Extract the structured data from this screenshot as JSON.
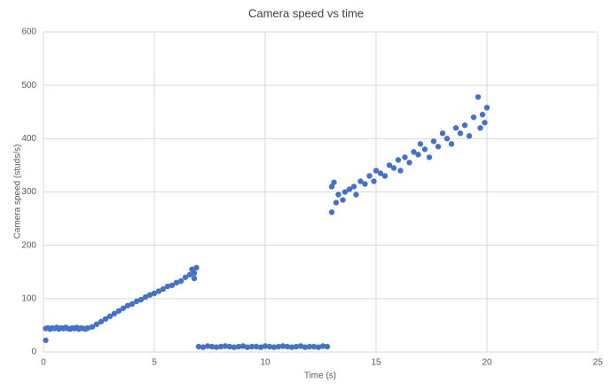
{
  "chart_data": {
    "type": "scatter",
    "title": "Camera speed vs time",
    "x_label": "Time (s)",
    "y_label": "Camera speed (studs/s)",
    "xlim": [
      0,
      25
    ],
    "xticks": [
      0,
      5,
      10,
      15,
      20,
      25
    ],
    "ylim": [
      0,
      600
    ],
    "yticks": [
      0,
      100,
      200,
      300,
      400,
      500,
      600
    ],
    "grid": true,
    "series": [
      {
        "color": "#4472c4",
        "x": [
          0.1,
          0.1,
          0.2,
          0.3,
          0.4,
          0.5,
          0.6,
          0.7,
          0.8,
          0.9,
          1.0,
          1.1,
          1.2,
          1.3,
          1.4,
          1.5,
          1.6,
          1.7,
          1.8,
          1.9,
          2.0,
          2.2,
          2.4,
          2.6,
          2.8,
          3.0,
          3.2,
          3.4,
          3.6,
          3.8,
          4.0,
          4.2,
          4.4,
          4.6,
          4.8,
          5.0,
          5.2,
          5.4,
          5.6,
          5.8,
          6.0,
          6.2,
          6.4,
          6.6,
          6.7,
          6.8,
          6.8,
          6.9,
          7.0,
          7.2,
          7.4,
          7.6,
          7.8,
          8.0,
          8.2,
          8.4,
          8.6,
          8.8,
          9.0,
          9.2,
          9.4,
          9.6,
          9.8,
          10.0,
          10.2,
          10.4,
          10.6,
          10.8,
          11.0,
          11.2,
          11.4,
          11.6,
          11.8,
          12.0,
          12.2,
          12.4,
          12.6,
          12.8,
          13.0,
          13.0,
          13.1,
          13.2,
          13.3,
          13.5,
          13.6,
          13.8,
          14.0,
          14.1,
          14.3,
          14.5,
          14.7,
          14.9,
          15.0,
          15.2,
          15.4,
          15.6,
          15.8,
          16.0,
          16.1,
          16.3,
          16.5,
          16.7,
          16.9,
          17.0,
          17.2,
          17.4,
          17.6,
          17.8,
          18.0,
          18.2,
          18.4,
          18.6,
          18.8,
          19.0,
          19.2,
          19.4,
          19.6,
          19.7,
          19.8,
          19.9,
          20.0
        ],
        "values": [
          22,
          44,
          45,
          43,
          45,
          44,
          46,
          43,
          45,
          44,
          46,
          44,
          43,
          45,
          44,
          46,
          43,
          45,
          44,
          43,
          45,
          47,
          52,
          57,
          62,
          67,
          72,
          77,
          82,
          87,
          90,
          95,
          98,
          103,
          107,
          110,
          114,
          118,
          123,
          125,
          130,
          133,
          140,
          145,
          155,
          148,
          138,
          158,
          10,
          9,
          11,
          10,
          9,
          10,
          11,
          10,
          9,
          10,
          11,
          9,
          10,
          10,
          9,
          11,
          10,
          9,
          10,
          11,
          10,
          9,
          10,
          11,
          9,
          10,
          10,
          9,
          11,
          10,
          262,
          310,
          318,
          280,
          295,
          285,
          300,
          305,
          310,
          295,
          320,
          315,
          330,
          320,
          340,
          335,
          330,
          350,
          345,
          360,
          340,
          365,
          355,
          375,
          370,
          390,
          380,
          365,
          395,
          385,
          410,
          400,
          390,
          420,
          410,
          425,
          405,
          440,
          478,
          420,
          445,
          430,
          458
        ]
      }
    ]
  }
}
